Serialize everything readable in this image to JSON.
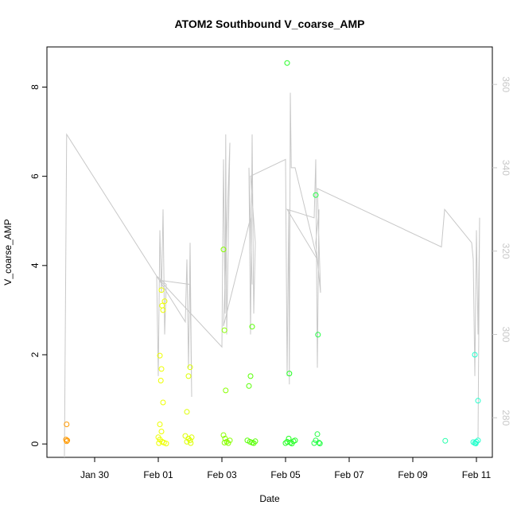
{
  "chart_data": {
    "type": "scatter",
    "title": "ATOM2 Southbound V_coarse_AMP",
    "xlabel": "Date",
    "ylabel": "V_coarse_AMP",
    "x_ticks": [
      "Jan 30",
      "Feb 01",
      "Feb 03",
      "Feb 05",
      "Feb 07",
      "Feb 09",
      "Feb 11"
    ],
    "x_tick_days": [
      30,
      32,
      34,
      36,
      38,
      40,
      42
    ],
    "xlim_days": [
      28.5,
      42.5
    ],
    "y_ticks": [
      0,
      2,
      4,
      6,
      8
    ],
    "ylim": [
      -0.3,
      8.9
    ],
    "y2_ticks": [
      280,
      300,
      320,
      340,
      360
    ],
    "y2lim": [
      270.5,
      369
    ],
    "colors": {
      "line": "#c8c8c8",
      "axis": "#000000",
      "right_axis": "#c8c8c8"
    },
    "point_series": [
      {
        "color": "#ff9900",
        "points": [
          [
            29.12,
            0.44
          ],
          [
            29.1,
            0.1
          ],
          [
            29.14,
            0.08
          ],
          [
            29.12,
            0.06
          ]
        ]
      },
      {
        "color": "#eeff00",
        "points": [
          [
            32.05,
            1.98
          ],
          [
            32.1,
            3.45
          ],
          [
            32.12,
            3.1
          ],
          [
            32.15,
            3.0
          ],
          [
            32.2,
            3.2
          ],
          [
            32.1,
            1.68
          ],
          [
            32.08,
            1.42
          ],
          [
            32.15,
            0.93
          ],
          [
            32.05,
            0.44
          ],
          [
            32.1,
            0.28
          ],
          [
            32.0,
            0.15
          ],
          [
            32.05,
            0.1
          ],
          [
            32.12,
            0.05
          ],
          [
            32.18,
            0.03
          ],
          [
            32.02,
            0.02
          ],
          [
            32.25,
            0.01
          ]
        ]
      },
      {
        "color": "#ddff00",
        "points": [
          [
            32.9,
            0.72
          ],
          [
            32.95,
            1.52
          ],
          [
            33.0,
            1.72
          ],
          [
            32.85,
            0.18
          ],
          [
            32.95,
            0.12
          ],
          [
            33.0,
            0.08
          ],
          [
            33.05,
            0.15
          ],
          [
            32.9,
            0.05
          ],
          [
            33.02,
            0.02
          ]
        ]
      },
      {
        "color": "#88ff00",
        "points": [
          [
            34.05,
            4.36
          ],
          [
            34.08,
            2.55
          ],
          [
            34.12,
            1.2
          ],
          [
            34.05,
            0.2
          ],
          [
            34.1,
            0.12
          ],
          [
            34.15,
            0.05
          ],
          [
            34.08,
            0.03
          ],
          [
            34.2,
            0.02
          ],
          [
            34.25,
            0.08
          ]
        ]
      },
      {
        "color": "#55ff00",
        "points": [
          [
            34.85,
            1.3
          ],
          [
            34.9,
            1.52
          ],
          [
            34.95,
            2.63
          ],
          [
            34.8,
            0.08
          ],
          [
            34.88,
            0.05
          ],
          [
            34.95,
            0.03
          ],
          [
            35.0,
            0.02
          ],
          [
            35.05,
            0.06
          ]
        ]
      },
      {
        "color": "#22ff22",
        "points": [
          [
            36.05,
            8.54
          ],
          [
            36.12,
            1.58
          ],
          [
            36.1,
            0.12
          ],
          [
            36.05,
            0.05
          ],
          [
            36.15,
            0.03
          ],
          [
            36.0,
            0.02
          ],
          [
            36.2,
            0.01
          ],
          [
            36.25,
            0.06
          ],
          [
            36.3,
            0.08
          ]
        ]
      },
      {
        "color": "#22ff44",
        "points": [
          [
            36.95,
            5.58
          ],
          [
            37.02,
            2.45
          ],
          [
            37.0,
            0.22
          ],
          [
            36.95,
            0.08
          ],
          [
            37.05,
            0.03
          ],
          [
            36.9,
            0.02
          ],
          [
            37.08,
            0.01
          ]
        ]
      },
      {
        "color": "#22ffaa",
        "points": [
          [
            41.02,
            0.07
          ]
        ]
      },
      {
        "color": "#22ffcc",
        "points": [
          [
            41.95,
            2.0
          ],
          [
            42.05,
            0.97
          ],
          [
            41.9,
            0.04
          ],
          [
            41.95,
            0.02
          ],
          [
            42.0,
            0.05
          ],
          [
            42.05,
            0.08
          ],
          [
            41.98,
            0.01
          ]
        ]
      }
    ],
    "secondary_line": [
      [
        29.05,
        270.5
      ],
      [
        29.12,
        348
      ],
      [
        31.95,
        314
      ],
      [
        32.0,
        290
      ],
      [
        32.05,
        325
      ],
      [
        32.1,
        310
      ],
      [
        32.15,
        330
      ],
      [
        32.2,
        300
      ],
      [
        32.25,
        312
      ],
      [
        31.95,
        314
      ],
      [
        32.85,
        303
      ],
      [
        32.9,
        318
      ],
      [
        32.95,
        292
      ],
      [
        33.0,
        322
      ],
      [
        33.05,
        285
      ],
      [
        33.0,
        312
      ],
      [
        32.05,
        313
      ],
      [
        34.0,
        297
      ],
      [
        34.05,
        342
      ],
      [
        34.1,
        305
      ],
      [
        34.12,
        348
      ],
      [
        34.15,
        300
      ],
      [
        34.2,
        322
      ],
      [
        34.25,
        346
      ],
      [
        34.05,
        302
      ],
      [
        34.9,
        328
      ],
      [
        34.95,
        312
      ],
      [
        34.85,
        340
      ],
      [
        34.9,
        300
      ],
      [
        34.95,
        348
      ],
      [
        35.0,
        305
      ],
      [
        35.05,
        322
      ],
      [
        34.9,
        338
      ],
      [
        36.0,
        342
      ],
      [
        36.05,
        290
      ],
      [
        36.1,
        330
      ],
      [
        36.12,
        288
      ],
      [
        36.15,
        358
      ],
      [
        36.18,
        340
      ],
      [
        36.3,
        340
      ],
      [
        37.0,
        318
      ],
      [
        36.05,
        330
      ],
      [
        36.9,
        328
      ],
      [
        36.95,
        342
      ],
      [
        37.0,
        292
      ],
      [
        37.05,
        330
      ],
      [
        36.95,
        322
      ],
      [
        37.1,
        310
      ],
      [
        37.0,
        335
      ],
      [
        40.9,
        321
      ],
      [
        41.0,
        330
      ],
      [
        41.85,
        322
      ],
      [
        41.9,
        318
      ],
      [
        41.95,
        290
      ],
      [
        42.0,
        325
      ],
      [
        42.05,
        300
      ],
      [
        42.1,
        328
      ],
      [
        42.05,
        275
      ]
    ]
  }
}
